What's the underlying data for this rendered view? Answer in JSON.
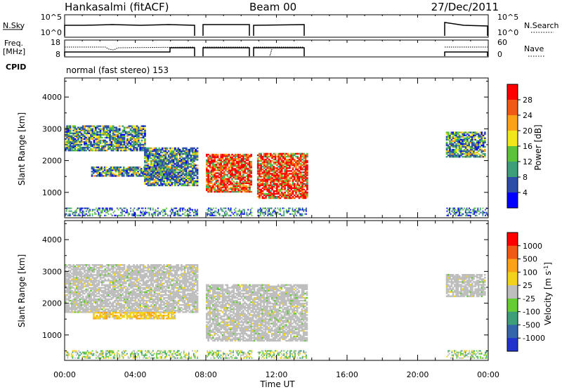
{
  "header": {
    "station": "Hankasalmi (fitACF)",
    "beam": "Beam 00",
    "date": "27/Dec/2011"
  },
  "strip_panels": {
    "nsky": {
      "label": "N.Sky",
      "right_label": "N.Search",
      "left_ticks": [
        "10^5",
        "10^0"
      ],
      "right_ticks": [
        "10^5",
        "10^0"
      ]
    },
    "freq": {
      "label": "Freq.",
      "unit": "[MHz]",
      "right_label": "Nave",
      "left_ticks": [
        "18",
        "8"
      ],
      "right_ticks": [
        "60",
        "0"
      ]
    },
    "cpid": {
      "label": "CPID",
      "text": "normal (fast stereo) 153"
    }
  },
  "chart_data": [
    {
      "type": "heatmap",
      "panel": "power",
      "ylabel": "Slant Range [km]",
      "yticks": [
        1000,
        2000,
        3000,
        4000
      ],
      "ylim": [
        200,
        4600
      ],
      "xlim": [
        0,
        24
      ],
      "colorbar": {
        "label": "Power [dB]",
        "ticks": [
          "28",
          "24",
          "20",
          "16",
          "12",
          "8",
          "4"
        ],
        "colors": [
          "#0000ff",
          "#2c4ea8",
          "#3d9e7a",
          "#5cc43a",
          "#f2e61c",
          "#f9a21a",
          "#f05a17",
          "#ff0000"
        ]
      },
      "data_gaps_ut": [
        [
          7.5,
          8.0
        ],
        [
          10.6,
          10.9
        ],
        [
          13.7,
          21.6
        ]
      ],
      "echo_regions": [
        {
          "x": [
            0.0,
            4.5
          ],
          "range": [
            2300,
            3100
          ],
          "level": "medium"
        },
        {
          "x": [
            1.5,
            6.2
          ],
          "range": [
            1500,
            1800
          ],
          "level": "medium"
        },
        {
          "x": [
            4.5,
            7.5
          ],
          "range": [
            1200,
            2400
          ],
          "level": "medium"
        },
        {
          "x": [
            8.0,
            10.6
          ],
          "range": [
            1000,
            2200
          ],
          "level": "high"
        },
        {
          "x": [
            10.9,
            13.7
          ],
          "range": [
            800,
            2200
          ],
          "level": "high"
        },
        {
          "x": [
            21.6,
            23.8
          ],
          "range": [
            2100,
            2900
          ],
          "level": "medium"
        }
      ]
    },
    {
      "type": "heatmap",
      "panel": "velocity",
      "ylabel": "Slant Range [km]",
      "xlabel": "Time UT",
      "yticks": [
        1000,
        2000,
        3000,
        4000
      ],
      "xticks": [
        "00:00",
        "04:00",
        "08:00",
        "12:00",
        "16:00",
        "20:00",
        "00:00"
      ],
      "ylim": [
        200,
        4600
      ],
      "xlim": [
        0,
        24
      ],
      "colorbar": {
        "label": "Velocity [m s^-1]",
        "ticks": [
          "1000",
          "500",
          "100",
          "25",
          "-25",
          "-100",
          "-500",
          "-1000"
        ],
        "colors": [
          "#2233cc",
          "#3366aa",
          "#3d9e7a",
          "#66cc33",
          "#bebebe",
          "#f2d21c",
          "#f9a21a",
          "#f05a17",
          "#ff0000"
        ]
      },
      "data_gaps_ut": [
        [
          7.5,
          8.0
        ],
        [
          10.6,
          10.9
        ],
        [
          13.7,
          21.6
        ]
      ],
      "echo_regions": [
        {
          "x": [
            0.0,
            7.5
          ],
          "range": [
            1700,
            3200
          ],
          "level": "ground"
        },
        {
          "x": [
            1.6,
            6.2
          ],
          "range": [
            1500,
            1700
          ],
          "level": "negative"
        },
        {
          "x": [
            8.0,
            13.7
          ],
          "range": [
            800,
            2600
          ],
          "level": "ground"
        },
        {
          "x": [
            21.6,
            23.8
          ],
          "range": [
            2200,
            2900
          ],
          "level": "ground"
        }
      ]
    }
  ]
}
